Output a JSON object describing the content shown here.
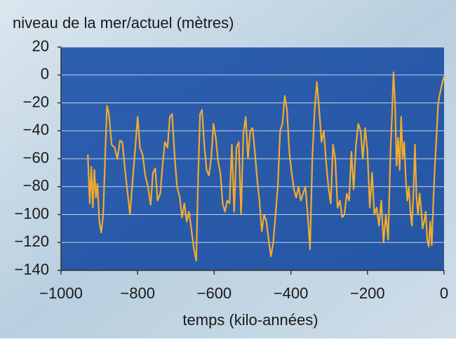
{
  "chart_data": {
    "type": "line",
    "title": "niveau de la mer/actuel (mètres)",
    "x_label": "temps (kilo-années)",
    "color": "#f2ab2e",
    "grid": true,
    "xlim": [
      -1000,
      0
    ],
    "ylim": [
      -140,
      20
    ],
    "xticks": [
      {
        "value": -1000,
        "label": "−1000"
      },
      {
        "value": -800,
        "label": "−800"
      },
      {
        "value": -600,
        "label": "−600"
      },
      {
        "value": -400,
        "label": "−400"
      },
      {
        "value": -200,
        "label": "−200"
      },
      0
    ],
    "yticks": [
      20,
      0,
      {
        "value": -20,
        "label": "−20"
      },
      {
        "value": -40,
        "label": "−40"
      },
      {
        "value": -60,
        "label": "−60"
      },
      {
        "value": -80,
        "label": "−80"
      },
      {
        "value": -100,
        "label": "−100"
      },
      {
        "value": -120,
        "label": "−120"
      },
      {
        "value": -140,
        "label": "−140"
      }
    ],
    "x": [
      -930,
      -925,
      -921,
      -917,
      -913,
      -909,
      -905,
      -900,
      -895,
      -890,
      -885,
      -880,
      -875,
      -868,
      -860,
      -853,
      -846,
      -840,
      -833,
      -826,
      -820,
      -813,
      -806,
      -800,
      -794,
      -787,
      -780,
      -773,
      -766,
      -760,
      -754,
      -748,
      -741,
      -735,
      -729,
      -722,
      -716,
      -710,
      -703,
      -697,
      -690,
      -684,
      -678,
      -672,
      -666,
      -660,
      -653,
      -647,
      -642,
      -637,
      -632,
      -626,
      -620,
      -614,
      -608,
      -602,
      -596,
      -590,
      -584,
      -578,
      -572,
      -566,
      -560,
      -554,
      -548,
      -542,
      -536,
      -530,
      -524,
      -518,
      -512,
      -506,
      -500,
      -494,
      -488,
      -482,
      -476,
      -470,
      -464,
      -458,
      -452,
      -446,
      -440,
      -434,
      -428,
      -422,
      -416,
      -410,
      -404,
      -398,
      -392,
      -386,
      -380,
      -374,
      -368,
      -362,
      -356,
      -350,
      -344,
      -338,
      -332,
      -326,
      -320,
      -314,
      -308,
      -302,
      -296,
      -290,
      -284,
      -278,
      -272,
      -266,
      -260,
      -254,
      -248,
      -242,
      -236,
      -230,
      -224,
      -218,
      -212,
      -206,
      -200,
      -194,
      -188,
      -182,
      -176,
      -170,
      -164,
      -158,
      -152,
      -146,
      -140,
      -136,
      -132,
      -128,
      -124,
      -120,
      -116,
      -112,
      -108,
      -104,
      -100,
      -96,
      -92,
      -88,
      -84,
      -80,
      -76,
      -72,
      -68,
      -64,
      -60,
      -56,
      -52,
      -48,
      -44,
      -40,
      -36,
      -32,
      -28,
      -24,
      -20,
      -16,
      -12,
      -8,
      -4,
      0
    ],
    "values": [
      -57,
      -92,
      -66,
      -95,
      -68,
      -88,
      -78,
      -105,
      -113,
      -100,
      -60,
      -22,
      -28,
      -50,
      -52,
      -60,
      -47,
      -48,
      -68,
      -85,
      -100,
      -75,
      -52,
      -30,
      -52,
      -57,
      -72,
      -80,
      -93,
      -70,
      -67,
      -90,
      -85,
      -65,
      -48,
      -52,
      -30,
      -28,
      -60,
      -80,
      -88,
      -102,
      -92,
      -105,
      -98,
      -110,
      -125,
      -133,
      -72,
      -28,
      -25,
      -50,
      -68,
      -72,
      -60,
      -35,
      -45,
      -62,
      -70,
      -92,
      -98,
      -90,
      -92,
      -50,
      -98,
      -52,
      -48,
      -100,
      -42,
      -30,
      -60,
      -40,
      -38,
      -55,
      -75,
      -90,
      -112,
      -100,
      -105,
      -118,
      -130,
      -120,
      -100,
      -80,
      -40,
      -35,
      -15,
      -25,
      -55,
      -70,
      -82,
      -88,
      -80,
      -90,
      -85,
      -80,
      -100,
      -125,
      -60,
      -25,
      -5,
      -25,
      -48,
      -40,
      -62,
      -80,
      -92,
      -50,
      -60,
      -95,
      -90,
      -102,
      -100,
      -85,
      -90,
      -55,
      -82,
      -50,
      -35,
      -40,
      -60,
      -38,
      -55,
      -95,
      -70,
      -100,
      -95,
      -108,
      -90,
      -120,
      -100,
      -118,
      -55,
      -30,
      2,
      -20,
      -65,
      -45,
      -68,
      -30,
      -60,
      -48,
      -75,
      -90,
      -80,
      -98,
      -108,
      -85,
      -50,
      -88,
      -100,
      -85,
      -95,
      -110,
      -105,
      -98,
      -118,
      -123,
      -105,
      -122,
      -90,
      -65,
      -45,
      -22,
      -15,
      -10,
      -5,
      -1
    ]
  }
}
